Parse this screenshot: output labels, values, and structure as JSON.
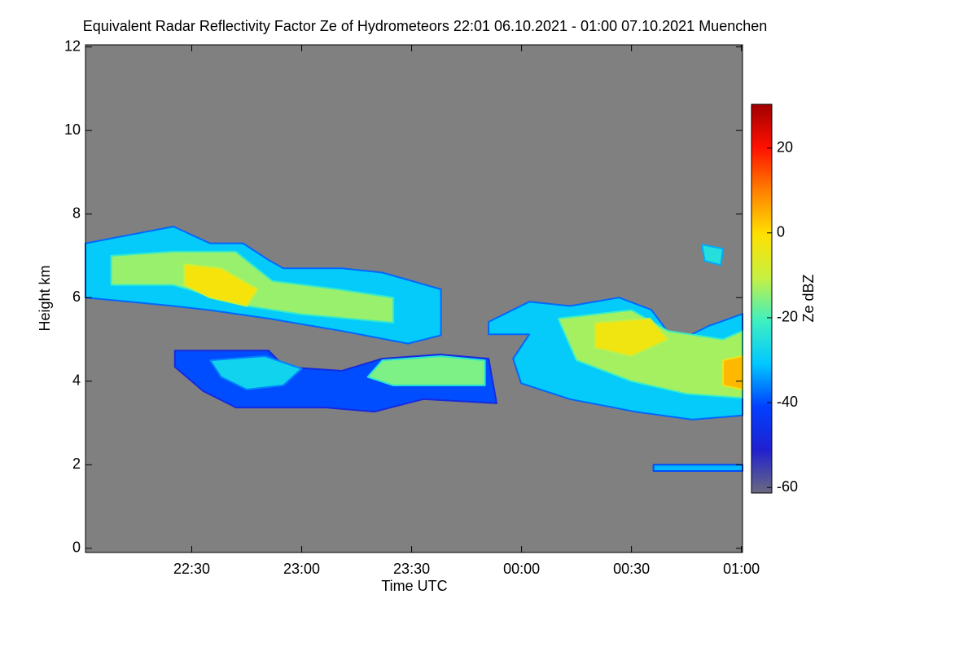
{
  "chart_data": {
    "type": "heatmap",
    "title": "Equivalent Radar Reflectivity Factor Ze of Hydrometeors   22:01 06.10.2021 - 01:00 07.10.2021 Muenchen",
    "x_label": "Time UTC",
    "y_label": "Height km",
    "colorbar_label": "Ze dBZ",
    "background": "#808080",
    "xlim": [
      1,
      180.3
    ],
    "xticks": [
      {
        "value": 30,
        "label": "22:30"
      },
      {
        "value": 60,
        "label": "23:00"
      },
      {
        "value": 90,
        "label": "23:30"
      },
      {
        "value": 120,
        "label": "00:00"
      },
      {
        "value": 150,
        "label": "00:30"
      },
      {
        "value": 180,
        "label": "01:00"
      }
    ],
    "ylim": [
      -0.1,
      12.05
    ],
    "yticks": [
      0,
      2,
      4,
      6,
      8,
      10,
      12
    ],
    "clim": [
      -61.3,
      30.3
    ],
    "cticks": [
      20,
      0,
      -20,
      -40,
      -60
    ],
    "colormap": [
      "#6a6a80",
      "#2020d0",
      "#0040ff",
      "#00c8ff",
      "#40f0c0",
      "#c8f040",
      "#ffe000",
      "#ff8000",
      "#ff1000",
      "#a00000"
    ],
    "regions": [
      {
        "x": [
          1,
          13,
          25,
          35,
          44,
          51,
          55,
          71,
          82,
          98,
          98,
          89,
          71,
          51,
          35,
          25,
          13,
          1
        ],
        "y": [
          7.3,
          7.5,
          7.7,
          7.3,
          7.3,
          6.9,
          6.7,
          6.7,
          6.6,
          6.2,
          5.1,
          4.9,
          5.2,
          5.5,
          5.7,
          5.8,
          5.9,
          6.0
        ],
        "value": -30
      },
      {
        "x": [
          8,
          25,
          42,
          52,
          70,
          85,
          85,
          60,
          45,
          25,
          8
        ],
        "y": [
          7.0,
          7.1,
          7.1,
          6.4,
          6.2,
          6.0,
          5.4,
          5.6,
          5.8,
          6.3,
          6.3
        ],
        "value": -14
      },
      {
        "x": [
          28,
          38,
          48,
          45,
          35,
          28
        ],
        "y": [
          6.8,
          6.7,
          6.2,
          5.8,
          6.0,
          6.3
        ],
        "value": -2
      },
      {
        "x": [
          25.4,
          51,
          55.4,
          71,
          82,
          97.7,
          111,
          113.2,
          93.2,
          79.9,
          66.6,
          42.1,
          33.2,
          25.4
        ],
        "y": [
          4.73,
          4.73,
          4.34,
          4.25,
          4.54,
          4.64,
          4.54,
          3.47,
          3.57,
          3.27,
          3.37,
          3.37,
          3.76,
          4.34
        ],
        "value": -40
      },
      {
        "x": [
          35,
          50,
          60,
          55,
          45,
          38
        ],
        "y": [
          4.5,
          4.6,
          4.3,
          3.9,
          3.8,
          4.1
        ],
        "value": -28
      },
      {
        "x": [
          82,
          98,
          110,
          110,
          85,
          78
        ],
        "y": [
          4.5,
          4.6,
          4.5,
          3.9,
          3.9,
          4.1
        ],
        "value": -16
      },
      {
        "x": [
          111,
          122.1,
          133.2,
          146.6,
          155.4,
          162.1,
          171,
          180.3,
          180.3,
          166.6,
          151,
          133.2,
          119.9,
          117.7,
          122.1,
          111
        ],
        "y": [
          5.42,
          5.9,
          5.8,
          6.0,
          5.71,
          4.93,
          5.32,
          5.61,
          3.18,
          3.08,
          3.27,
          3.57,
          3.95,
          4.54,
          5.12,
          5.12
        ],
        "value": -30
      },
      {
        "x": [
          130,
          150,
          160,
          175,
          180.3,
          180.3,
          165,
          150,
          135
        ],
        "y": [
          5.5,
          5.7,
          5.2,
          5.0,
          5.2,
          3.6,
          3.7,
          4.0,
          4.5
        ],
        "value": -13
      },
      {
        "x": [
          140,
          155,
          160,
          150,
          140
        ],
        "y": [
          5.4,
          5.5,
          5.0,
          4.6,
          4.8
        ],
        "value": -3
      },
      {
        "x": [
          175,
          180.3,
          180.3,
          175
        ],
        "y": [
          4.5,
          4.6,
          3.8,
          3.9
        ],
        "value": 4
      },
      {
        "x": [
          169.2,
          175,
          174.4,
          170
        ],
        "y": [
          7.27,
          7.17,
          6.78,
          6.88
        ],
        "value": -25
      },
      {
        "x": [
          156,
          180.3,
          180.3,
          156
        ],
        "y": [
          2.0,
          2.0,
          1.85,
          1.85
        ],
        "value": -32
      }
    ]
  }
}
